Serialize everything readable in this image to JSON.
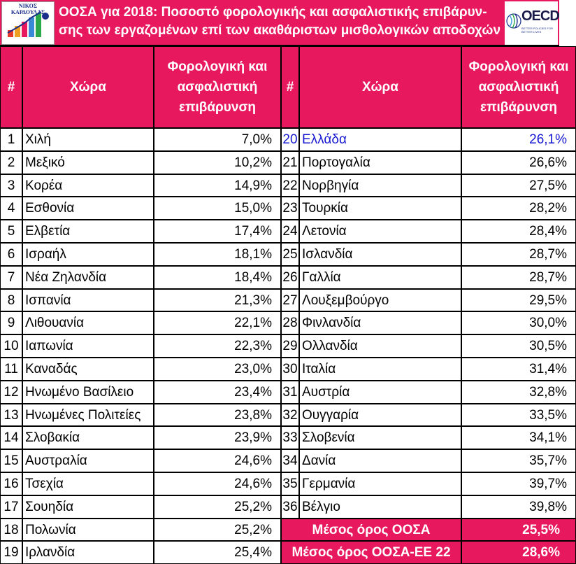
{
  "header": {
    "title_line1": "ΟΟΣΑ για 2018: Ποσοστό φορολογικής και ασφαλιστικής επιβάρυν-",
    "title_line2": "σης των εργαζομένων επί των ακαθάριστων μισθολογικών αποδοχών",
    "logo_left_name": "ΝΙΚΟΣ ΚΑΡΔΟΥΛΑΣ",
    "logo_right_name": "OECD",
    "logo_right_tagline": "BETTER POLICIES FOR BETTER LIVES"
  },
  "columns": {
    "num": "#",
    "country": "Χώρα",
    "value": "Φορολογική και ασφαλιστική επιβάρυνση"
  },
  "left_rows": [
    {
      "n": "1",
      "country": "Χιλή",
      "value": "7,0%"
    },
    {
      "n": "2",
      "country": "Μεξικό",
      "value": "10,2%"
    },
    {
      "n": "3",
      "country": "Κορέα",
      "value": "14,9%"
    },
    {
      "n": "4",
      "country": "Εσθονία",
      "value": "15,0%"
    },
    {
      "n": "5",
      "country": "Ελβετία",
      "value": "17,4%"
    },
    {
      "n": "6",
      "country": "Ισραήλ",
      "value": "18,1%"
    },
    {
      "n": "7",
      "country": "Νέα Ζηλανδία",
      "value": "18,4%"
    },
    {
      "n": "8",
      "country": "Ισπανία",
      "value": "21,3%"
    },
    {
      "n": "9",
      "country": "Λιθουανία",
      "value": "22,1%"
    },
    {
      "n": "10",
      "country": "Ιαπωνία",
      "value": "22,3%"
    },
    {
      "n": "11",
      "country": "Καναδάς",
      "value": "23,0%"
    },
    {
      "n": "12",
      "country": "Ηνωμένο Βασίλειο",
      "value": "23,4%"
    },
    {
      "n": "13",
      "country": "Ηνωμένες Πολιτείες",
      "value": "23,8%"
    },
    {
      "n": "14",
      "country": "Σλοβακία",
      "value": "23,9%"
    },
    {
      "n": "15",
      "country": "Αυστραλία",
      "value": "24,6%"
    },
    {
      "n": "16",
      "country": "Τσεχία",
      "value": "24,6%"
    },
    {
      "n": "17",
      "country": "Σουηδία",
      "value": "25,2%"
    },
    {
      "n": "18",
      "country": "Πολωνία",
      "value": "25,2%"
    },
    {
      "n": "19",
      "country": "Ιρλανδία",
      "value": "25,4%"
    }
  ],
  "right_rows": [
    {
      "n": "20",
      "country": "Ελλάδα",
      "value": "26,1%",
      "highlight": true
    },
    {
      "n": "21",
      "country": "Πορτογαλία",
      "value": "26,6%"
    },
    {
      "n": "22",
      "country": "Νορβηγία",
      "value": "27,5%"
    },
    {
      "n": "23",
      "country": "Τουρκία",
      "value": "28,2%"
    },
    {
      "n": "24",
      "country": "Λετονία",
      "value": "28,4%"
    },
    {
      "n": "25",
      "country": "Ισλανδία",
      "value": "28,7%"
    },
    {
      "n": "26",
      "country": "Γαλλία",
      "value": "28,7%"
    },
    {
      "n": "27",
      "country": "Λουξεμβούργο",
      "value": "29,5%"
    },
    {
      "n": "28",
      "country": "Φινλανδία",
      "value": "30,0%"
    },
    {
      "n": "29",
      "country": "Ολλανδία",
      "value": "30,5%"
    },
    {
      "n": "30",
      "country": "Ιταλία",
      "value": "31,4%"
    },
    {
      "n": "31",
      "country": "Αυστρία",
      "value": "32,8%"
    },
    {
      "n": "32",
      "country": "Ουγγαρία",
      "value": "33,5%"
    },
    {
      "n": "33",
      "country": "Σλοβενία",
      "value": "34,1%"
    },
    {
      "n": "34",
      "country": "Δανία",
      "value": "35,7%"
    },
    {
      "n": "35",
      "country": "Γερμανία",
      "value": "39,7%"
    },
    {
      "n": "36",
      "country": "Βέλγιο",
      "value": "39,8%"
    }
  ],
  "summary": [
    {
      "label": "Μέσος όρος ΟΟΣΑ",
      "value": "25,5%"
    },
    {
      "label": "Μέσος όρος ΟΟΣΑ-ΕΕ 22",
      "value": "28,6%"
    }
  ],
  "colors": {
    "accent": "#e8185e",
    "highlight_text": "#1616d2"
  }
}
